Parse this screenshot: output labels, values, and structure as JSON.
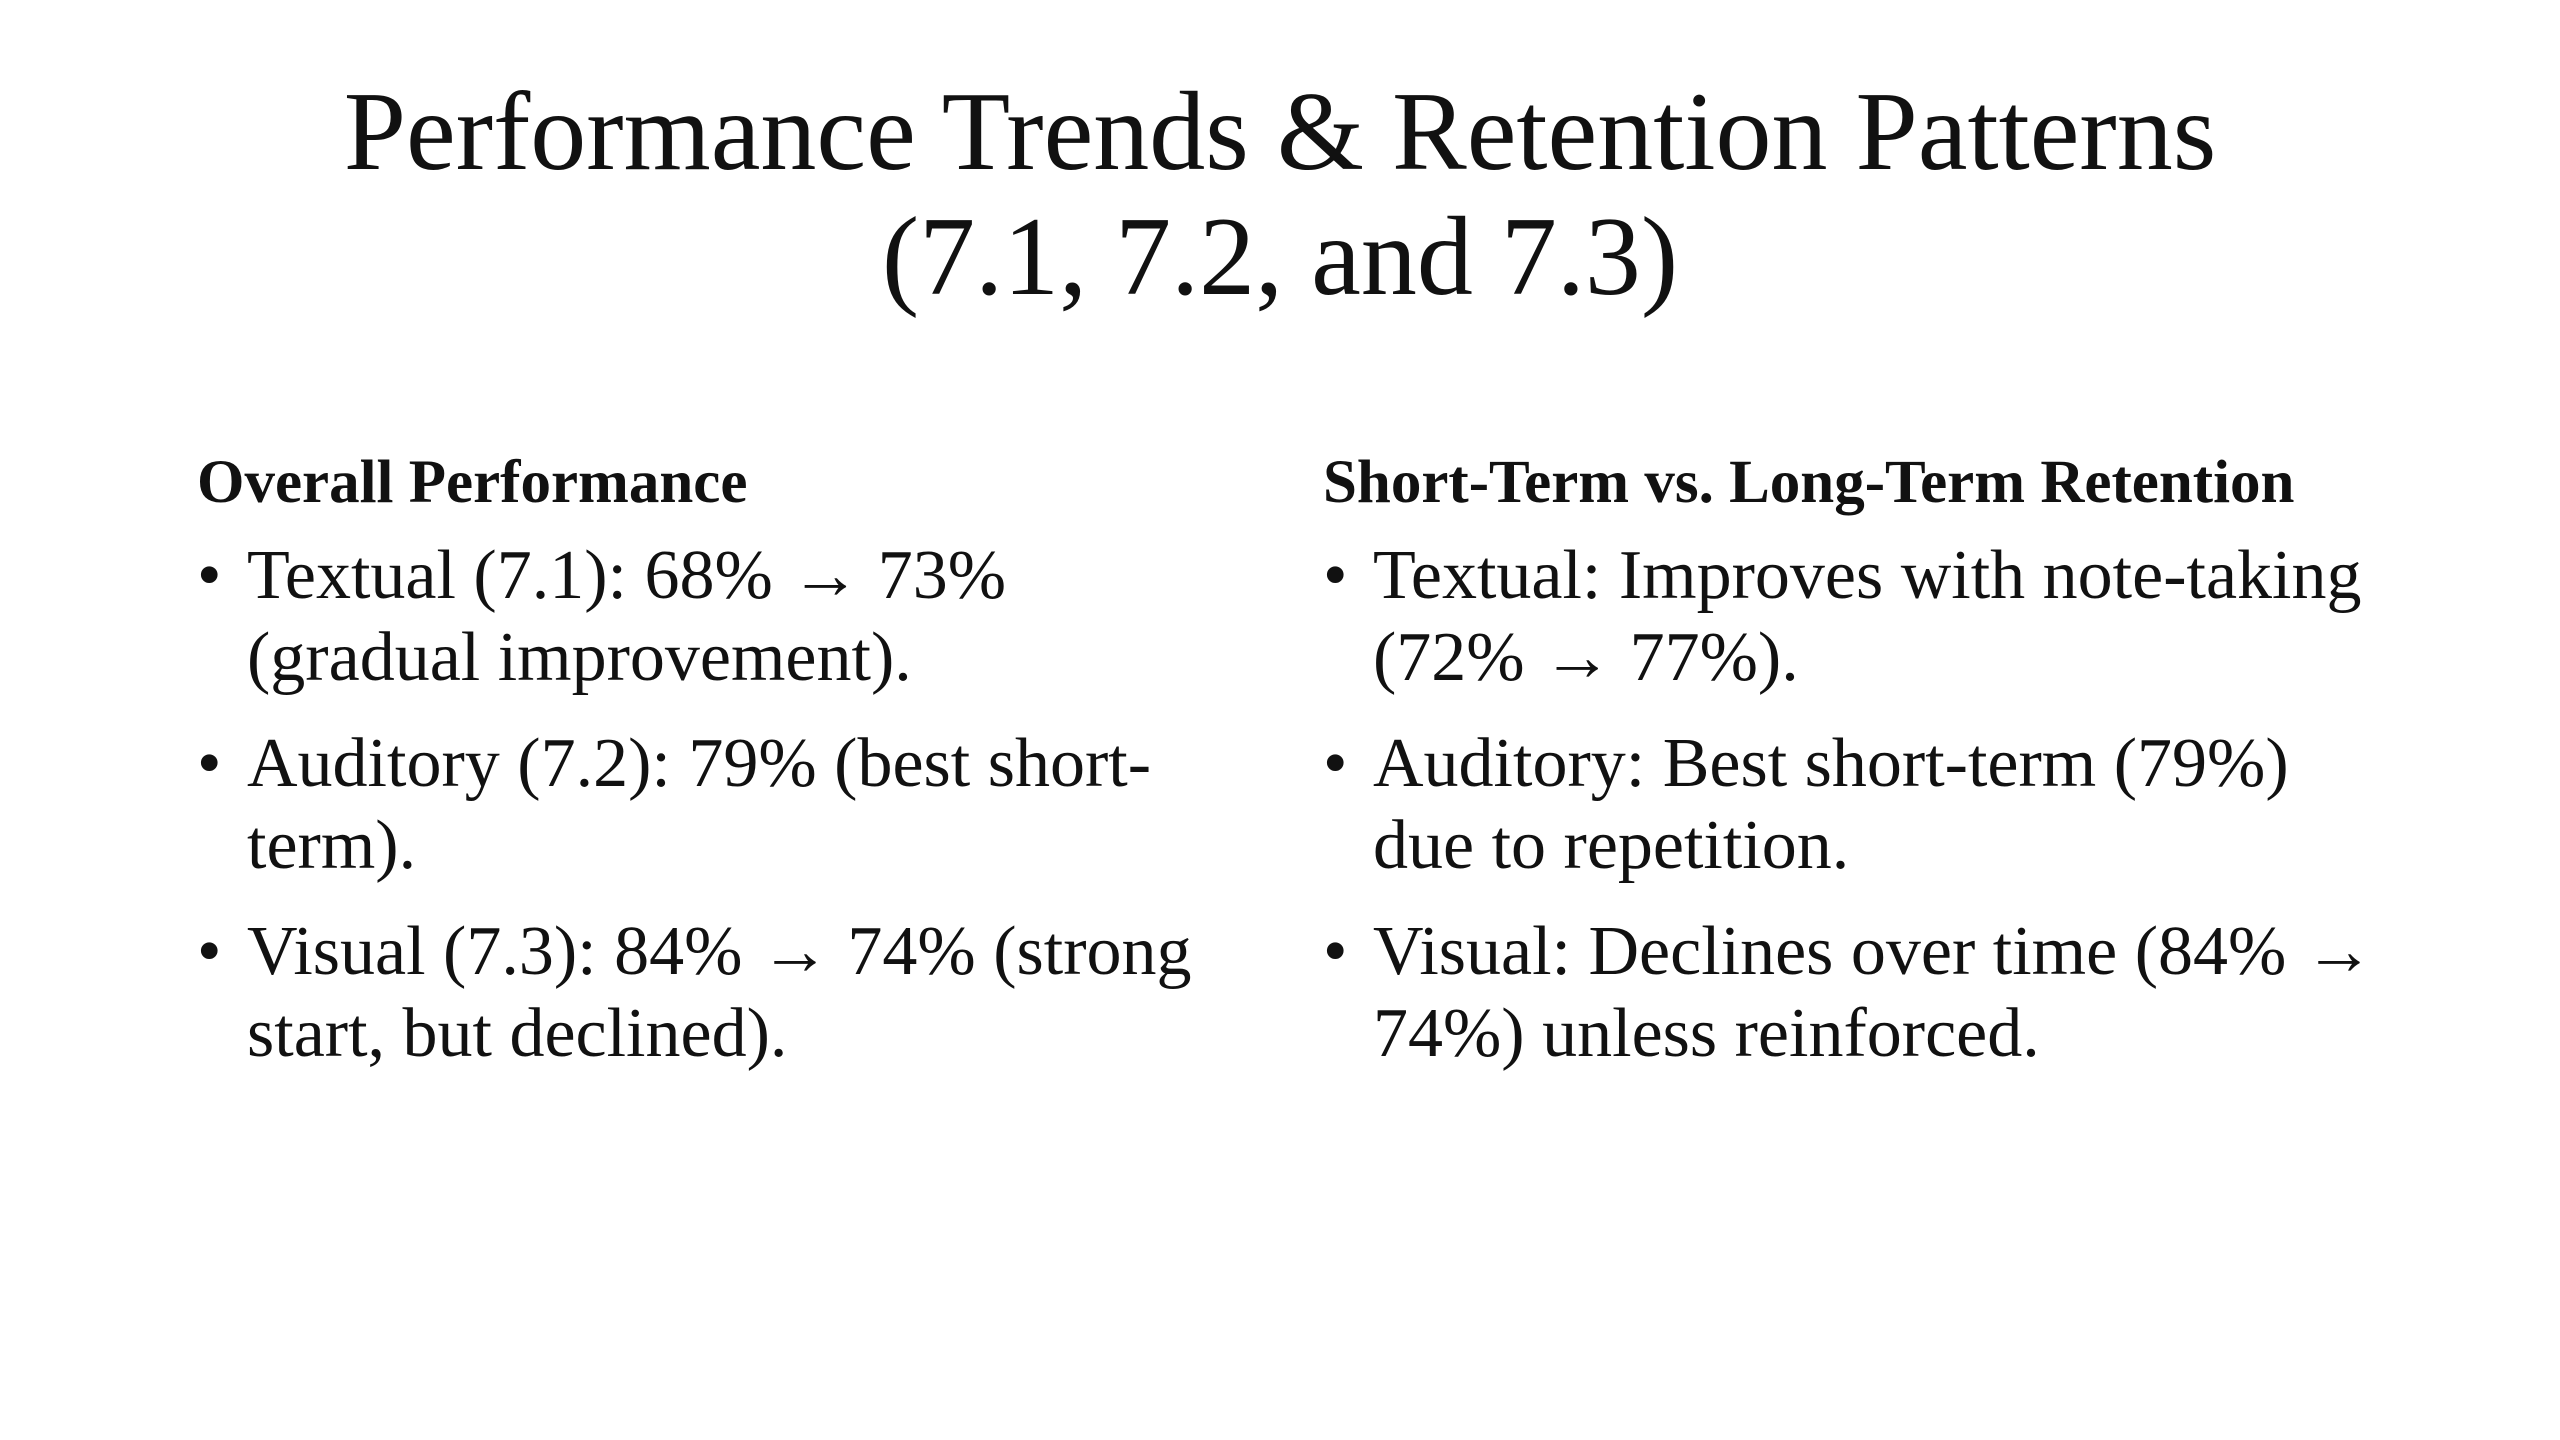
{
  "slide": {
    "title_line1": "Performance Trends & Retention Patterns",
    "title_line2": "(7.1, 7.2, and 7.3)",
    "left": {
      "heading": "Overall Performance",
      "bullets": [
        "Textual (7.1): 68% → 73% (gradual improvement).",
        "Auditory (7.2): 79% (best short-term).",
        "Visual (7.3): 84% → 74% (strong start, but declined)."
      ]
    },
    "right": {
      "heading": "Short-Term vs. Long-Term Retention",
      "bullets": [
        "Textual: Improves with note-taking (72% → 77%).",
        "Auditory: Best short-term (79%) due to repetition.",
        "Visual: Declines over time (84% → 74%) unless reinforced."
      ]
    },
    "bullet_symbol": "•"
  }
}
